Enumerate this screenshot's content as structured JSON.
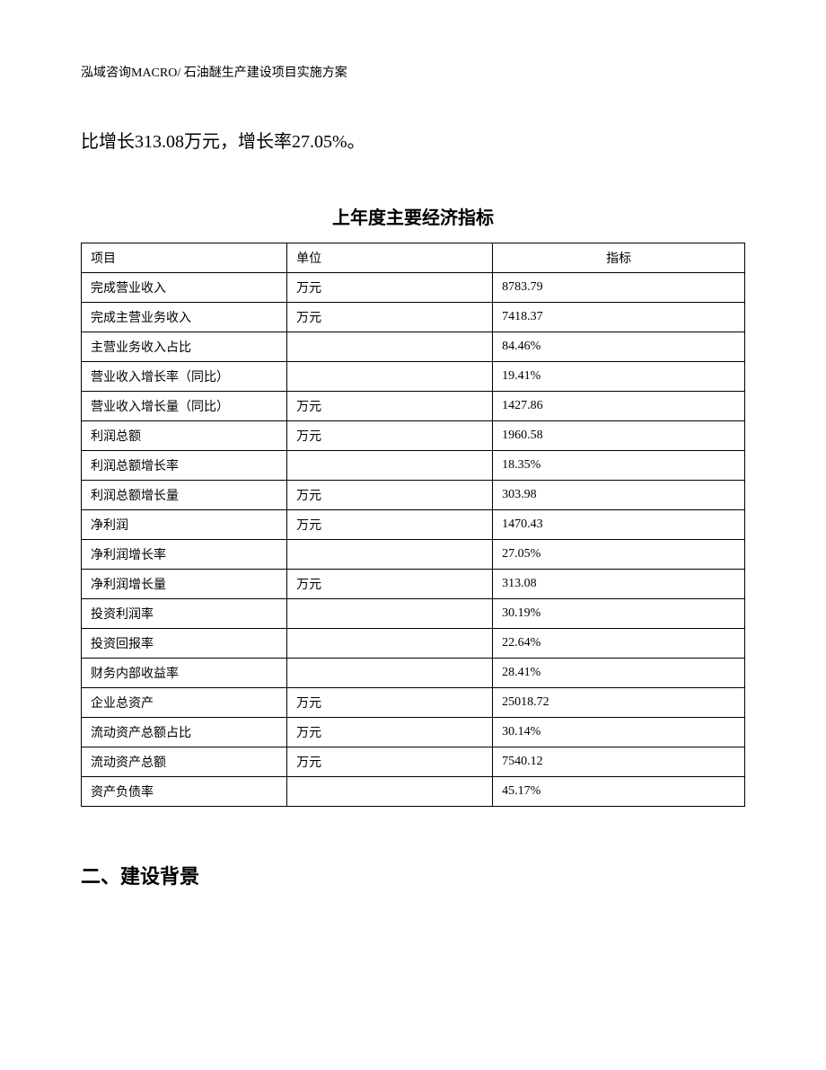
{
  "header": {
    "text": "泓域咨询MACRO/ 石油醚生产建设项目实施方案"
  },
  "intro": {
    "text": "比增长313.08万元，增长率27.05%。"
  },
  "table": {
    "title": "上年度主要经济指标",
    "columns": {
      "project": "项目",
      "unit": "单位",
      "value": "指标"
    },
    "rows": [
      {
        "project": "完成营业收入",
        "unit": "万元",
        "value": "8783.79"
      },
      {
        "project": "完成主营业务收入",
        "unit": "万元",
        "value": "7418.37"
      },
      {
        "project": "主营业务收入占比",
        "unit": "",
        "value": "84.46%"
      },
      {
        "project": "营业收入增长率（同比）",
        "unit": "",
        "value": "19.41%"
      },
      {
        "project": "营业收入增长量（同比）",
        "unit": "万元",
        "value": "1427.86"
      },
      {
        "project": "利润总额",
        "unit": "万元",
        "value": "1960.58"
      },
      {
        "project": "利润总额增长率",
        "unit": "",
        "value": "18.35%"
      },
      {
        "project": "利润总额增长量",
        "unit": "万元",
        "value": "303.98"
      },
      {
        "project": "净利润",
        "unit": "万元",
        "value": "1470.43"
      },
      {
        "project": "净利润增长率",
        "unit": "",
        "value": "27.05%"
      },
      {
        "project": "净利润增长量",
        "unit": "万元",
        "value": "313.08"
      },
      {
        "project": "投资利润率",
        "unit": "",
        "value": "30.19%"
      },
      {
        "project": "投资回报率",
        "unit": "",
        "value": "22.64%"
      },
      {
        "project": "财务内部收益率",
        "unit": "",
        "value": "28.41%"
      },
      {
        "project": "企业总资产",
        "unit": "万元",
        "value": "25018.72"
      },
      {
        "project": "流动资产总额占比",
        "unit": "万元",
        "value": "30.14%"
      },
      {
        "project": "流动资产总额",
        "unit": "万元",
        "value": "7540.12"
      },
      {
        "project": "资产负债率",
        "unit": "",
        "value": "45.17%"
      }
    ]
  },
  "section": {
    "heading": "二、建设背景"
  }
}
